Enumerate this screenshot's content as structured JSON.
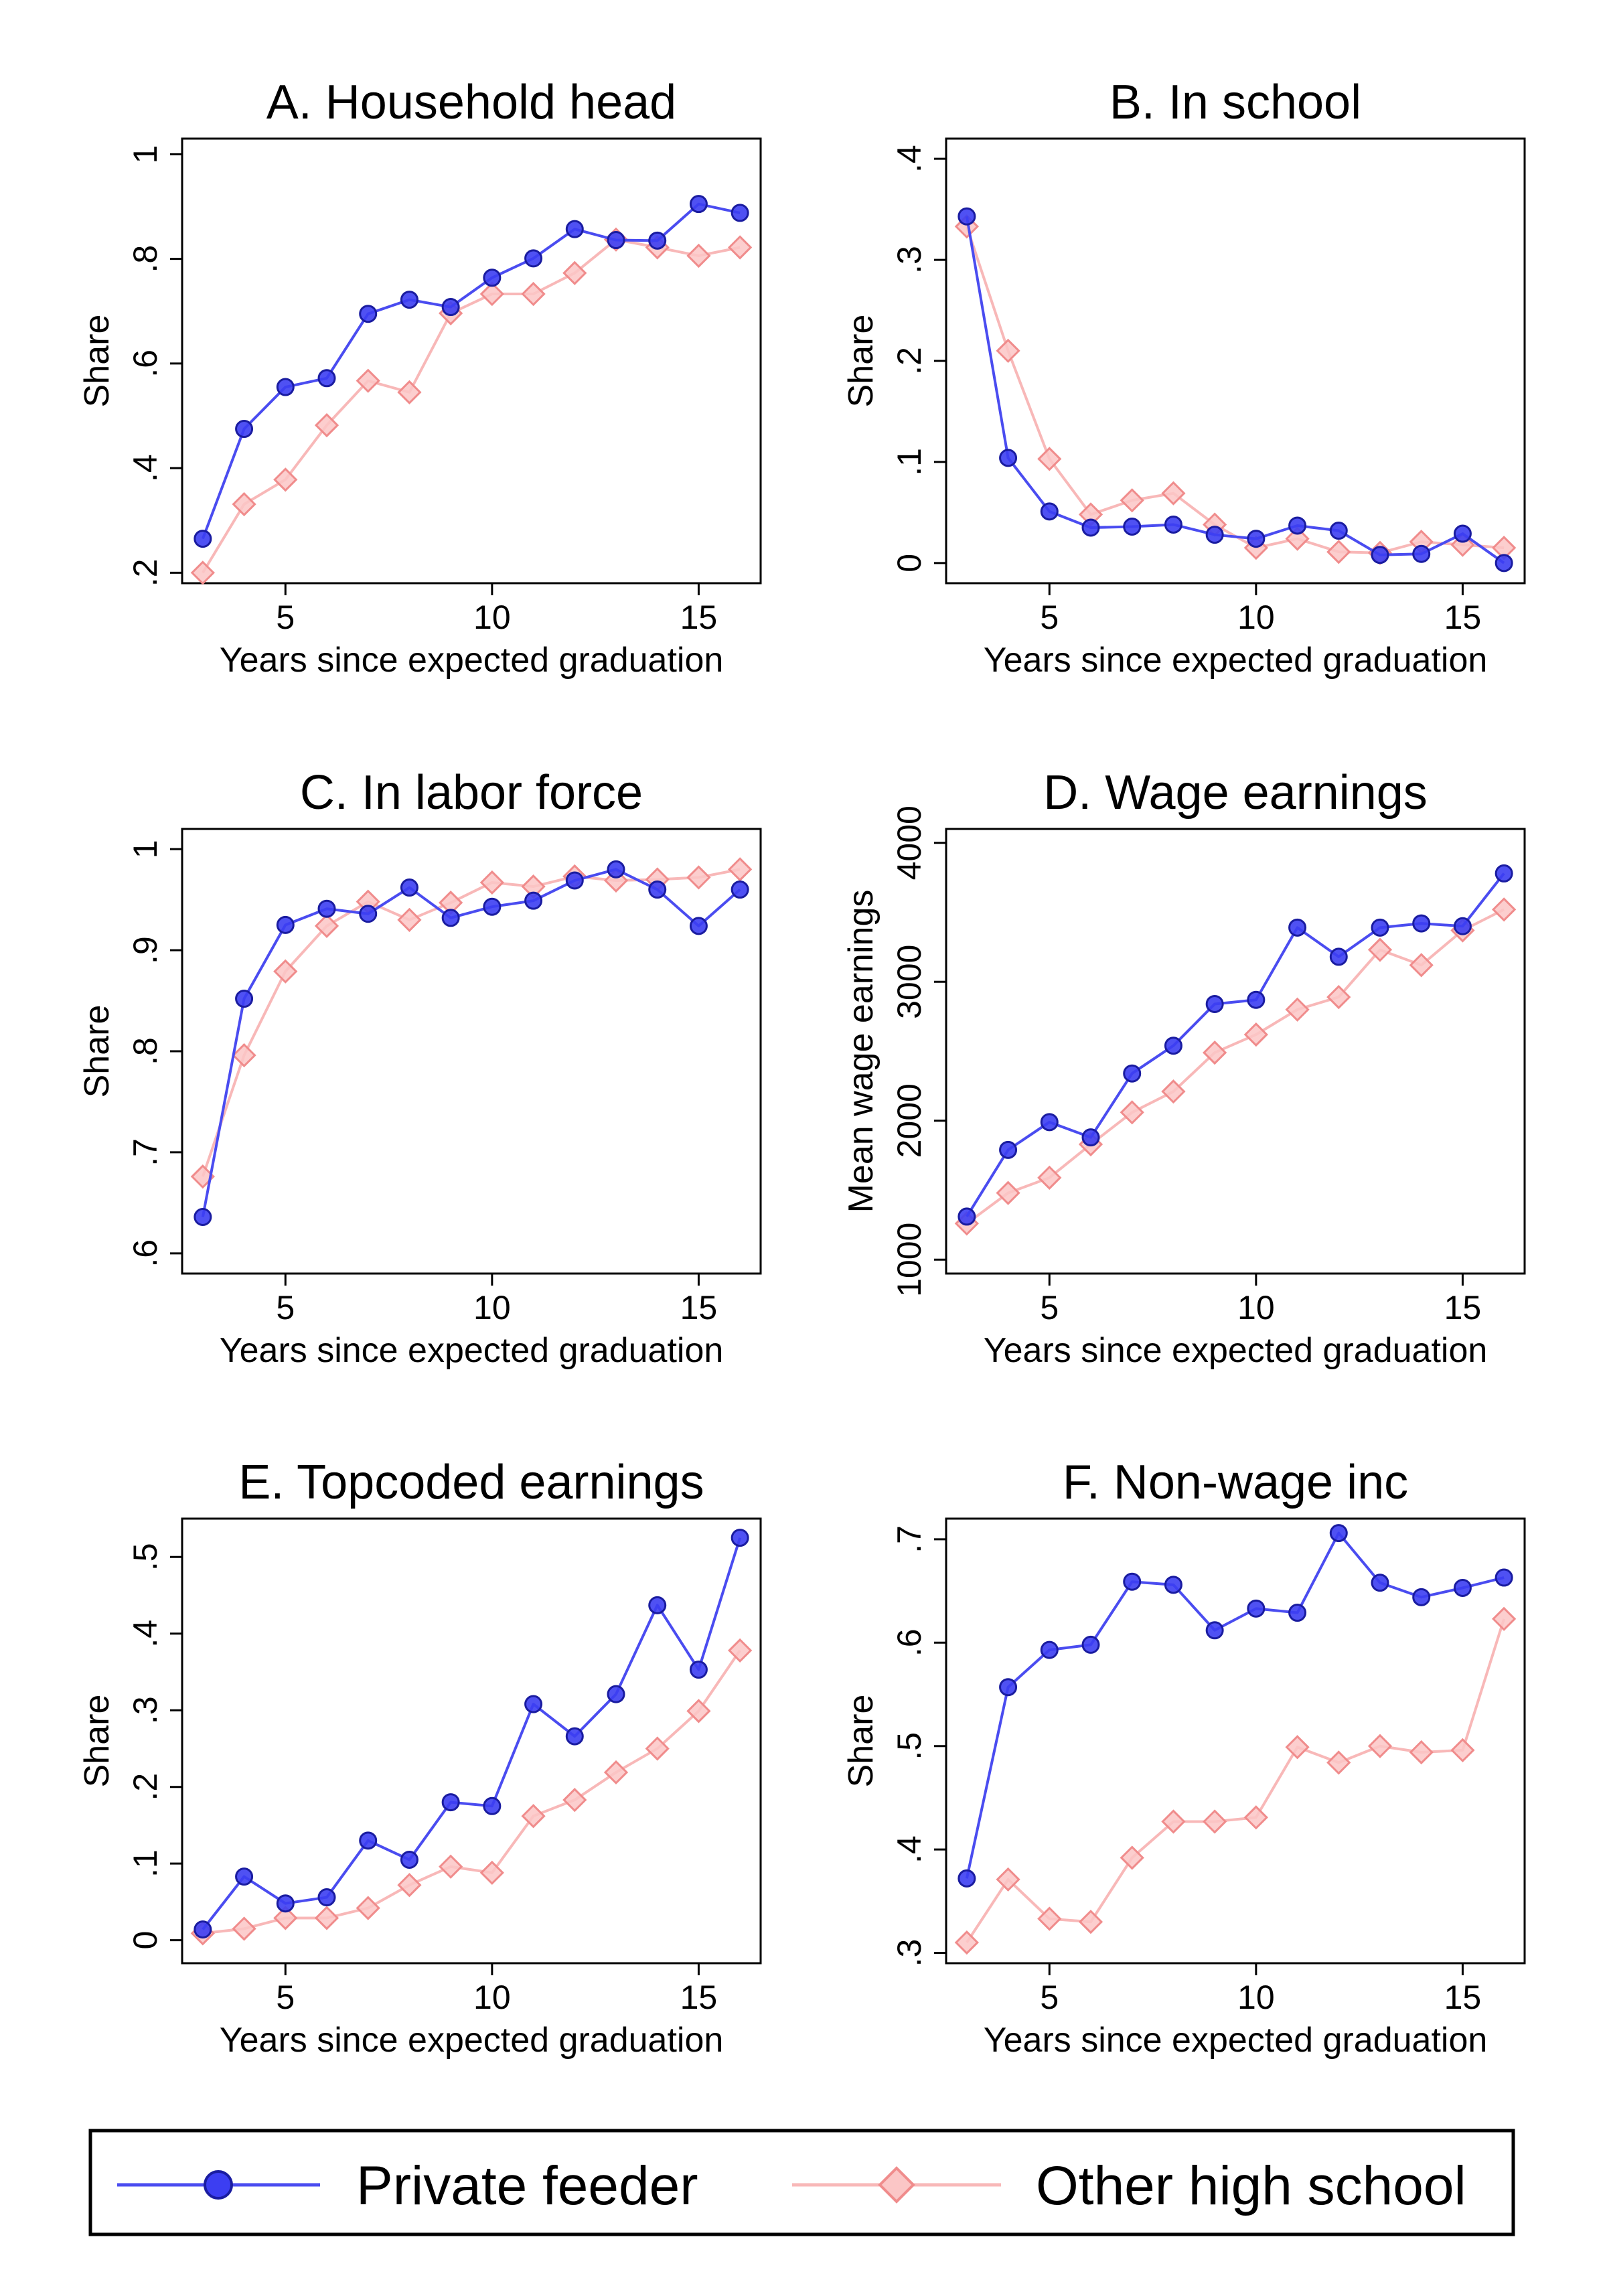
{
  "series_styles": {
    "private_feeder": {
      "line_color": "#4a4cf0",
      "marker_fill": "#3c3ef2",
      "marker_stroke": "#1a1ca0",
      "marker": "circle"
    },
    "other_high_school": {
      "line_color": "#f8b8b8",
      "marker_fill": "#fbc6c6",
      "marker_stroke": "#f08c8c",
      "marker": "diamond"
    }
  },
  "legend": {
    "items": [
      {
        "label": "Private feeder",
        "series": "private_feeder"
      },
      {
        "label": "Other high school",
        "series": "other_high_school"
      }
    ]
  },
  "chart_data": [
    {
      "type": "line",
      "title": "A. Household head",
      "xlabel": "Years since expected graduation",
      "ylabel": "Share",
      "x": [
        3,
        4,
        5,
        6,
        7,
        8,
        9,
        10,
        11,
        12,
        13,
        14,
        15,
        16
      ],
      "xlim": [
        2.5,
        16.5
      ],
      "xticks": [
        5,
        10,
        15
      ],
      "xtick_labels": [
        "5",
        "10",
        "15"
      ],
      "ylim": [
        0.18,
        1.03
      ],
      "yticks": [
        0.2,
        0.4,
        0.6,
        0.8,
        1.0
      ],
      "ytick_labels": [
        ".2",
        ".4",
        ".6",
        ".8",
        "1"
      ],
      "grid": false,
      "series": [
        {
          "key": "private_feeder",
          "values": [
            0.265,
            0.475,
            0.555,
            0.572,
            0.695,
            0.722,
            0.708,
            0.764,
            0.801,
            0.857,
            0.836,
            0.835,
            0.905,
            0.888
          ]
        },
        {
          "key": "other_high_school",
          "values": [
            0.2,
            0.331,
            0.378,
            0.482,
            0.567,
            0.545,
            0.696,
            0.733,
            0.733,
            0.773,
            0.837,
            0.822,
            0.806,
            0.822
          ]
        }
      ]
    },
    {
      "type": "line",
      "title": "B. In school",
      "xlabel": "Years since expected graduation",
      "ylabel": "Share",
      "x": [
        3,
        4,
        5,
        6,
        7,
        8,
        9,
        10,
        11,
        12,
        13,
        14,
        15,
        16
      ],
      "xlim": [
        2.5,
        16.5
      ],
      "xticks": [
        5,
        10,
        15
      ],
      "xtick_labels": [
        "5",
        "10",
        "15"
      ],
      "ylim": [
        -0.02,
        0.42
      ],
      "yticks": [
        0,
        0.1,
        0.2,
        0.3,
        0.4
      ],
      "ytick_labels": [
        "0",
        ".1",
        ".2",
        ".3",
        ".4"
      ],
      "grid": false,
      "series": [
        {
          "key": "private_feeder",
          "values": [
            0.343,
            0.104,
            0.051,
            0.035,
            0.036,
            0.038,
            0.028,
            0.024,
            0.037,
            0.032,
            0.008,
            0.009,
            0.029,
            0.0
          ]
        },
        {
          "key": "other_high_school",
          "values": [
            0.333,
            0.21,
            0.103,
            0.048,
            0.062,
            0.069,
            0.038,
            0.015,
            0.024,
            0.011,
            0.01,
            0.021,
            0.018,
            0.015
          ]
        }
      ]
    },
    {
      "type": "line",
      "title": "C. In labor force",
      "xlabel": "Years since expected graduation",
      "ylabel": "Share",
      "x": [
        3,
        4,
        5,
        6,
        7,
        8,
        9,
        10,
        11,
        12,
        13,
        14,
        15,
        16
      ],
      "xlim": [
        2.5,
        16.5
      ],
      "xticks": [
        5,
        10,
        15
      ],
      "xtick_labels": [
        "5",
        "10",
        "15"
      ],
      "ylim": [
        0.58,
        1.02
      ],
      "yticks": [
        0.6,
        0.7,
        0.8,
        0.9,
        1.0
      ],
      "ytick_labels": [
        ".6",
        ".7",
        ".8",
        ".9",
        "1"
      ],
      "grid": false,
      "series": [
        {
          "key": "private_feeder",
          "values": [
            0.636,
            0.852,
            0.925,
            0.941,
            0.936,
            0.962,
            0.932,
            0.943,
            0.949,
            0.969,
            0.98,
            0.96,
            0.924,
            0.96
          ]
        },
        {
          "key": "other_high_school",
          "values": [
            0.676,
            0.796,
            0.879,
            0.924,
            0.948,
            0.93,
            0.947,
            0.967,
            0.963,
            0.973,
            0.969,
            0.97,
            0.972,
            0.98
          ]
        }
      ]
    },
    {
      "type": "line",
      "title": "D. Wage earnings",
      "xlabel": "Years since expected graduation",
      "ylabel": "Mean wage earnings",
      "x": [
        3,
        4,
        5,
        6,
        7,
        8,
        9,
        10,
        11,
        12,
        13,
        14,
        15,
        16
      ],
      "xlim": [
        2.5,
        16.5
      ],
      "xticks": [
        5,
        10,
        15
      ],
      "xtick_labels": [
        "5",
        "10",
        "15"
      ],
      "ylim": [
        900,
        4100
      ],
      "yticks": [
        1000,
        2000,
        3000,
        4000
      ],
      "ytick_labels": [
        "1000",
        "2000",
        "3000",
        "4000"
      ],
      "grid": false,
      "series": [
        {
          "key": "private_feeder",
          "values": [
            1310,
            1790,
            1990,
            1880,
            2340,
            2540,
            2840,
            2870,
            3390,
            3180,
            3390,
            3420,
            3400,
            3780
          ]
        },
        {
          "key": "other_high_school",
          "values": [
            1260,
            1480,
            1590,
            1830,
            2060,
            2210,
            2490,
            2620,
            2800,
            2890,
            3230,
            3120,
            3370,
            3520
          ]
        }
      ]
    },
    {
      "type": "line",
      "title": "E. Topcoded earnings",
      "xlabel": "Years since expected graduation",
      "ylabel": "Share",
      "x": [
        3,
        4,
        5,
        6,
        7,
        8,
        9,
        10,
        11,
        12,
        13,
        14,
        15,
        16
      ],
      "xlim": [
        2.5,
        16.5
      ],
      "xticks": [
        5,
        10,
        15
      ],
      "xtick_labels": [
        "5",
        "10",
        "15"
      ],
      "ylim": [
        -0.03,
        0.55
      ],
      "yticks": [
        0,
        0.1,
        0.2,
        0.3,
        0.4,
        0.5
      ],
      "ytick_labels": [
        "0",
        ".1",
        ".2",
        ".3",
        ".4",
        ".5"
      ],
      "grid": false,
      "series": [
        {
          "key": "private_feeder",
          "values": [
            0.014,
            0.083,
            0.048,
            0.056,
            0.13,
            0.105,
            0.18,
            0.175,
            0.308,
            0.266,
            0.321,
            0.437,
            0.353,
            0.525
          ]
        },
        {
          "key": "other_high_school",
          "values": [
            0.009,
            0.015,
            0.029,
            0.029,
            0.042,
            0.072,
            0.096,
            0.088,
            0.162,
            0.183,
            0.219,
            0.25,
            0.299,
            0.378
          ]
        }
      ]
    },
    {
      "type": "line",
      "title": "F. Non-wage inc",
      "xlabel": "Years since expected graduation",
      "ylabel": "Share",
      "x": [
        3,
        4,
        5,
        6,
        7,
        8,
        9,
        10,
        11,
        12,
        13,
        14,
        15,
        16
      ],
      "xlim": [
        2.5,
        16.5
      ],
      "xticks": [
        5,
        10,
        15
      ],
      "xtick_labels": [
        "5",
        "10",
        "15"
      ],
      "ylim": [
        0.29,
        0.72
      ],
      "yticks": [
        0.3,
        0.4,
        0.5,
        0.6,
        0.7
      ],
      "ytick_labels": [
        ".3",
        ".4",
        ".5",
        ".6",
        ".7"
      ],
      "grid": false,
      "series": [
        {
          "key": "private_feeder",
          "values": [
            0.372,
            0.557,
            0.593,
            0.598,
            0.659,
            0.656,
            0.612,
            0.633,
            0.629,
            0.706,
            0.658,
            0.644,
            0.653,
            0.663
          ]
        },
        {
          "key": "other_high_school",
          "values": [
            0.31,
            0.371,
            0.333,
            0.33,
            0.392,
            0.427,
            0.427,
            0.431,
            0.499,
            0.484,
            0.5,
            0.494,
            0.496,
            0.623
          ]
        }
      ]
    }
  ]
}
